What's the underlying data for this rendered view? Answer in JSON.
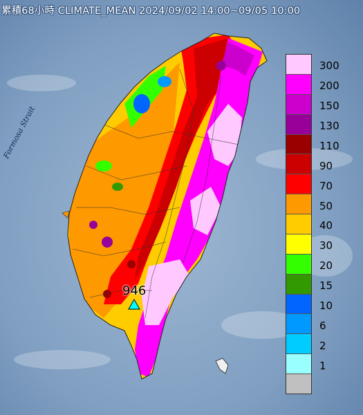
{
  "title": "累積68小時 CLIMATE_MEAN 2024/09/02 14:00~09/05 10:00",
  "strait_label": "Formosa Strait",
  "station": {
    "label": "946"
  },
  "legend": {
    "levels": [
      {
        "label": "300",
        "color": "#ffc8ff"
      },
      {
        "label": "200",
        "color": "#ff00ff"
      },
      {
        "label": "150",
        "color": "#cc00cc"
      },
      {
        "label": "130",
        "color": "#990099"
      },
      {
        "label": "110",
        "color": "#990000"
      },
      {
        "label": "90",
        "color": "#cc0000"
      },
      {
        "label": "70",
        "color": "#ff0000"
      },
      {
        "label": "50",
        "color": "#ff9900"
      },
      {
        "label": "40",
        "color": "#ffcc00"
      },
      {
        "label": "30",
        "color": "#ffff00"
      },
      {
        "label": "20",
        "color": "#33ff00"
      },
      {
        "label": "15",
        "color": "#339900"
      },
      {
        "label": "10",
        "color": "#0066ff"
      },
      {
        "label": "6",
        "color": "#0099ff"
      },
      {
        "label": "2",
        "color": "#00ccff"
      },
      {
        "label": "1",
        "color": "#99ffff"
      },
      {
        "label": "",
        "color": "#c0c0c0"
      }
    ]
  }
}
